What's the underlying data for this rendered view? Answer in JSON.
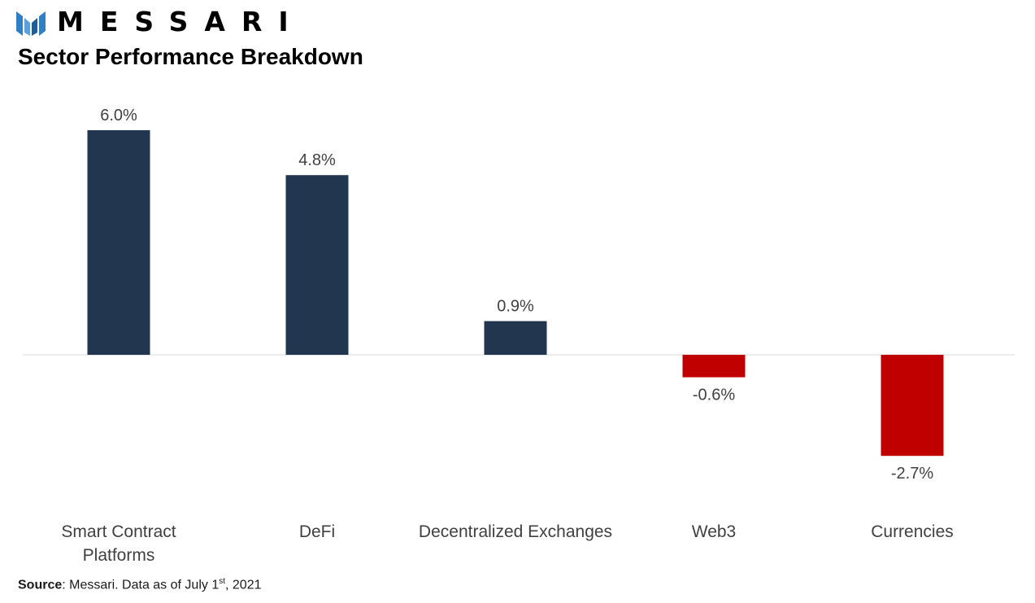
{
  "brand": {
    "name": "MESSARI",
    "logo_icon": "messari-logo-icon"
  },
  "colors": {
    "positive": "#22374f",
    "negative": "#c00000",
    "baseline": "#d9d9d9",
    "label_text": "#404040",
    "logo_blue": "#2f7fc4"
  },
  "chart_data": {
    "type": "bar",
    "title": "Sector Performance Breakdown",
    "categories": [
      "Smart Contract Platforms",
      "DeFi",
      "Decentralized Exchanges",
      "Web3",
      "Currencies"
    ],
    "category_lines": [
      [
        "Smart Contract",
        "Platforms"
      ],
      [
        "DeFi"
      ],
      [
        "Decentralized Exchanges"
      ],
      [
        "Web3"
      ],
      [
        "Currencies"
      ]
    ],
    "values": [
      6.0,
      4.8,
      0.9,
      -0.6,
      -2.7
    ],
    "value_labels": [
      "6.0%",
      "4.8%",
      "0.9%",
      "-0.6%",
      "-2.7%"
    ],
    "unit": "%",
    "xlabel": "",
    "ylabel": "",
    "ylim": [
      -4.0,
      7.0
    ],
    "grid": false,
    "legend": "none",
    "data_labels": true
  },
  "source": {
    "label": "Source",
    "text": ": Messari. Data as of July 1",
    "suffix": "st",
    "tail": ", 2021"
  }
}
